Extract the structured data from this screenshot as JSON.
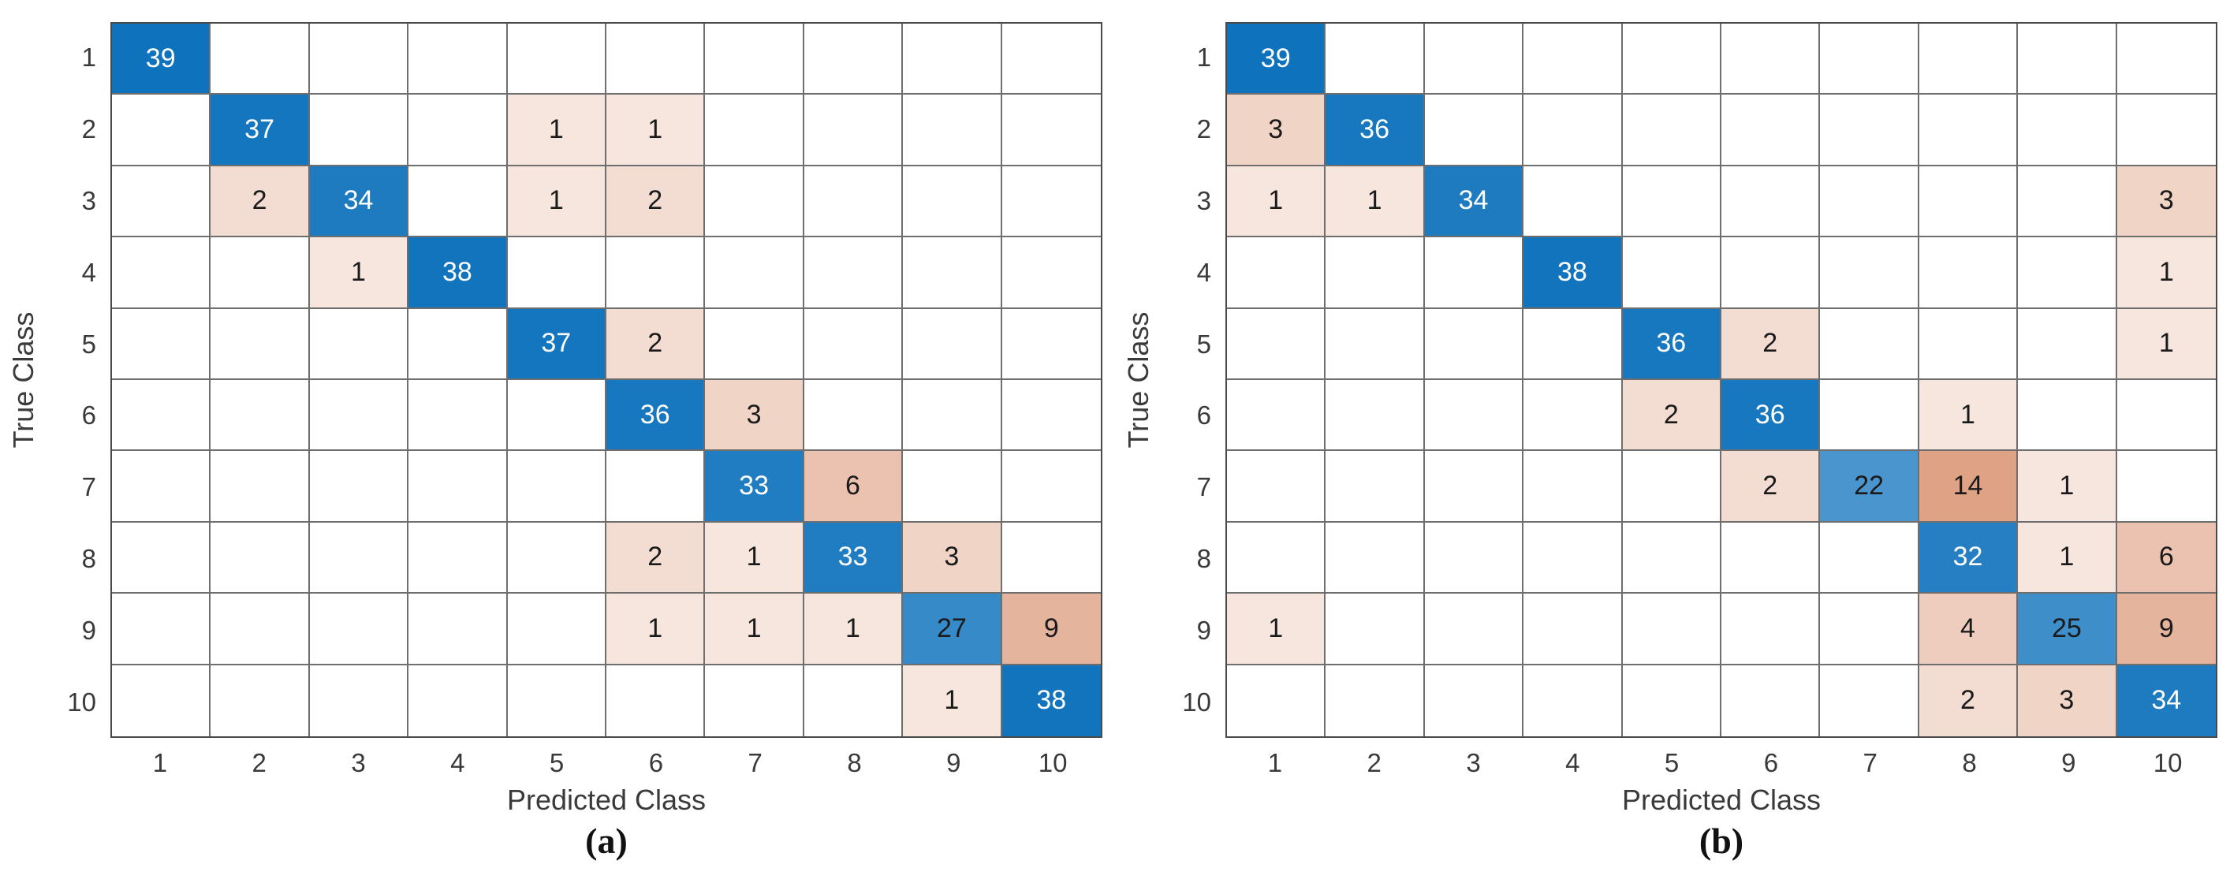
{
  "figure": {
    "background": "#FFFFFF",
    "tick_text_color": "#3A3A3A",
    "grid_line_color": "#6E6E6E",
    "outer_border_color": "#4A4A4A",
    "diagonal_base_color": "#0E72BC",
    "off_diagonal_base_color": "#C96333",
    "cell_text_light": "#FFFFFF",
    "cell_text_dark": "#1A1A1A"
  },
  "chart_data": [
    {
      "type": "heatmap",
      "subtype": "confusion-matrix",
      "caption": "(a)",
      "xlabel": "Predicted Class",
      "ylabel": "True Class",
      "x_tick_labels": [
        "1",
        "2",
        "3",
        "4",
        "5",
        "6",
        "7",
        "8",
        "9",
        "10"
      ],
      "y_tick_labels": [
        "1",
        "2",
        "3",
        "4",
        "5",
        "6",
        "7",
        "8",
        "9",
        "10"
      ],
      "normalize_max": 39,
      "intensity_scale": "sqrt",
      "grid": "on",
      "rows": [
        [
          39,
          0,
          0,
          0,
          0,
          0,
          0,
          0,
          0,
          0
        ],
        [
          0,
          37,
          0,
          0,
          1,
          1,
          0,
          0,
          0,
          0
        ],
        [
          0,
          2,
          34,
          0,
          1,
          2,
          0,
          0,
          0,
          0
        ],
        [
          0,
          0,
          1,
          38,
          0,
          0,
          0,
          0,
          0,
          0
        ],
        [
          0,
          0,
          0,
          0,
          37,
          2,
          0,
          0,
          0,
          0
        ],
        [
          0,
          0,
          0,
          0,
          0,
          36,
          3,
          0,
          0,
          0
        ],
        [
          0,
          0,
          0,
          0,
          0,
          0,
          33,
          6,
          0,
          0
        ],
        [
          0,
          0,
          0,
          0,
          0,
          2,
          1,
          33,
          3,
          0
        ],
        [
          0,
          0,
          0,
          0,
          0,
          1,
          1,
          1,
          27,
          9
        ],
        [
          0,
          0,
          0,
          0,
          0,
          0,
          0,
          0,
          1,
          38
        ]
      ]
    },
    {
      "type": "heatmap",
      "subtype": "confusion-matrix",
      "caption": "(b)",
      "xlabel": "Predicted Class",
      "ylabel": "True Class",
      "x_tick_labels": [
        "1",
        "2",
        "3",
        "4",
        "5",
        "6",
        "7",
        "8",
        "9",
        "10"
      ],
      "y_tick_labels": [
        "1",
        "2",
        "3",
        "4",
        "5",
        "6",
        "7",
        "8",
        "9",
        "10"
      ],
      "normalize_max": 39,
      "intensity_scale": "sqrt",
      "grid": "on",
      "rows": [
        [
          39,
          0,
          0,
          0,
          0,
          0,
          0,
          0,
          0,
          0
        ],
        [
          3,
          36,
          0,
          0,
          0,
          0,
          0,
          0,
          0,
          0
        ],
        [
          1,
          1,
          34,
          0,
          0,
          0,
          0,
          0,
          0,
          3
        ],
        [
          0,
          0,
          0,
          38,
          0,
          0,
          0,
          0,
          0,
          1
        ],
        [
          0,
          0,
          0,
          0,
          36,
          2,
          0,
          0,
          0,
          1
        ],
        [
          0,
          0,
          0,
          0,
          2,
          36,
          0,
          1,
          0,
          0
        ],
        [
          0,
          0,
          0,
          0,
          0,
          2,
          22,
          14,
          1,
          0
        ],
        [
          0,
          0,
          0,
          0,
          0,
          0,
          0,
          32,
          1,
          6
        ],
        [
          1,
          0,
          0,
          0,
          0,
          0,
          0,
          4,
          25,
          9
        ],
        [
          0,
          0,
          0,
          0,
          0,
          0,
          0,
          2,
          3,
          34
        ]
      ]
    }
  ]
}
